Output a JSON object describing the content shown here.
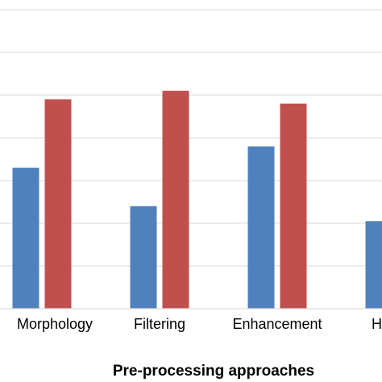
{
  "chart_data": {
    "type": "bar",
    "xlabel": "Pre-processing approaches",
    "ylabel": "",
    "categories": [
      "Morphology",
      "Filtering",
      "Enhancement",
      "H"
    ],
    "series": [
      {
        "values": [
          3.3,
          2.4,
          3.8,
          2.05
        ]
      },
      {
        "values": [
          4.9,
          5.1,
          4.8,
          null
        ]
      }
    ],
    "ylim": [
      0,
      7
    ],
    "grid": true,
    "legend": "none",
    "colors": [
      "#4F81BD",
      "#C0504D"
    ]
  }
}
